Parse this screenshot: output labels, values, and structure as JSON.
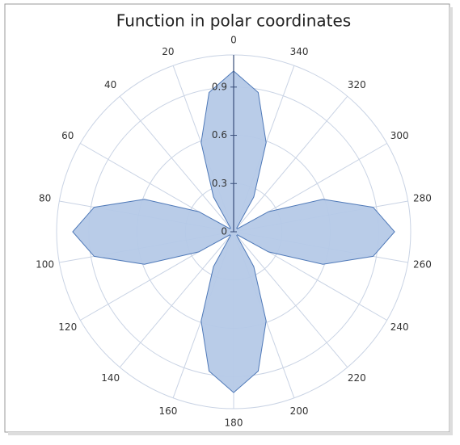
{
  "chart_data": {
    "type": "polar-area",
    "title": "Function in polar coordinates",
    "x": [
      0,
      10,
      20,
      30,
      40,
      50,
      60,
      70,
      80,
      90,
      100,
      110,
      120,
      130,
      140,
      150,
      160,
      170,
      180,
      190,
      200,
      210,
      220,
      230,
      240,
      250,
      260,
      270,
      280,
      290,
      300,
      310,
      320,
      330,
      340,
      350
    ],
    "values": [
      1,
      0.88,
      0.59,
      0.25,
      0.03,
      0.03,
      0.25,
      0.59,
      0.88,
      1,
      0.88,
      0.59,
      0.25,
      0.03,
      0.03,
      0.25,
      0.59,
      0.88,
      1,
      0.88,
      0.59,
      0.25,
      0.03,
      0.03,
      0.25,
      0.59,
      0.88,
      1,
      0.88,
      0.59,
      0.25,
      0.03,
      0.03,
      0.25,
      0.59,
      0.88
    ],
    "color": "#b5c9e7",
    "line_color": "#4f79b8",
    "xlim": [
      0,
      360
    ],
    "xticks": [
      0,
      20,
      40,
      60,
      80,
      100,
      120,
      140,
      160,
      180,
      200,
      220,
      240,
      260,
      280,
      300,
      320,
      340
    ],
    "ylim": [
      0,
      1.1
    ],
    "yticks": [
      0,
      0.3,
      0.6,
      0.9
    ],
    "grid": true
  }
}
